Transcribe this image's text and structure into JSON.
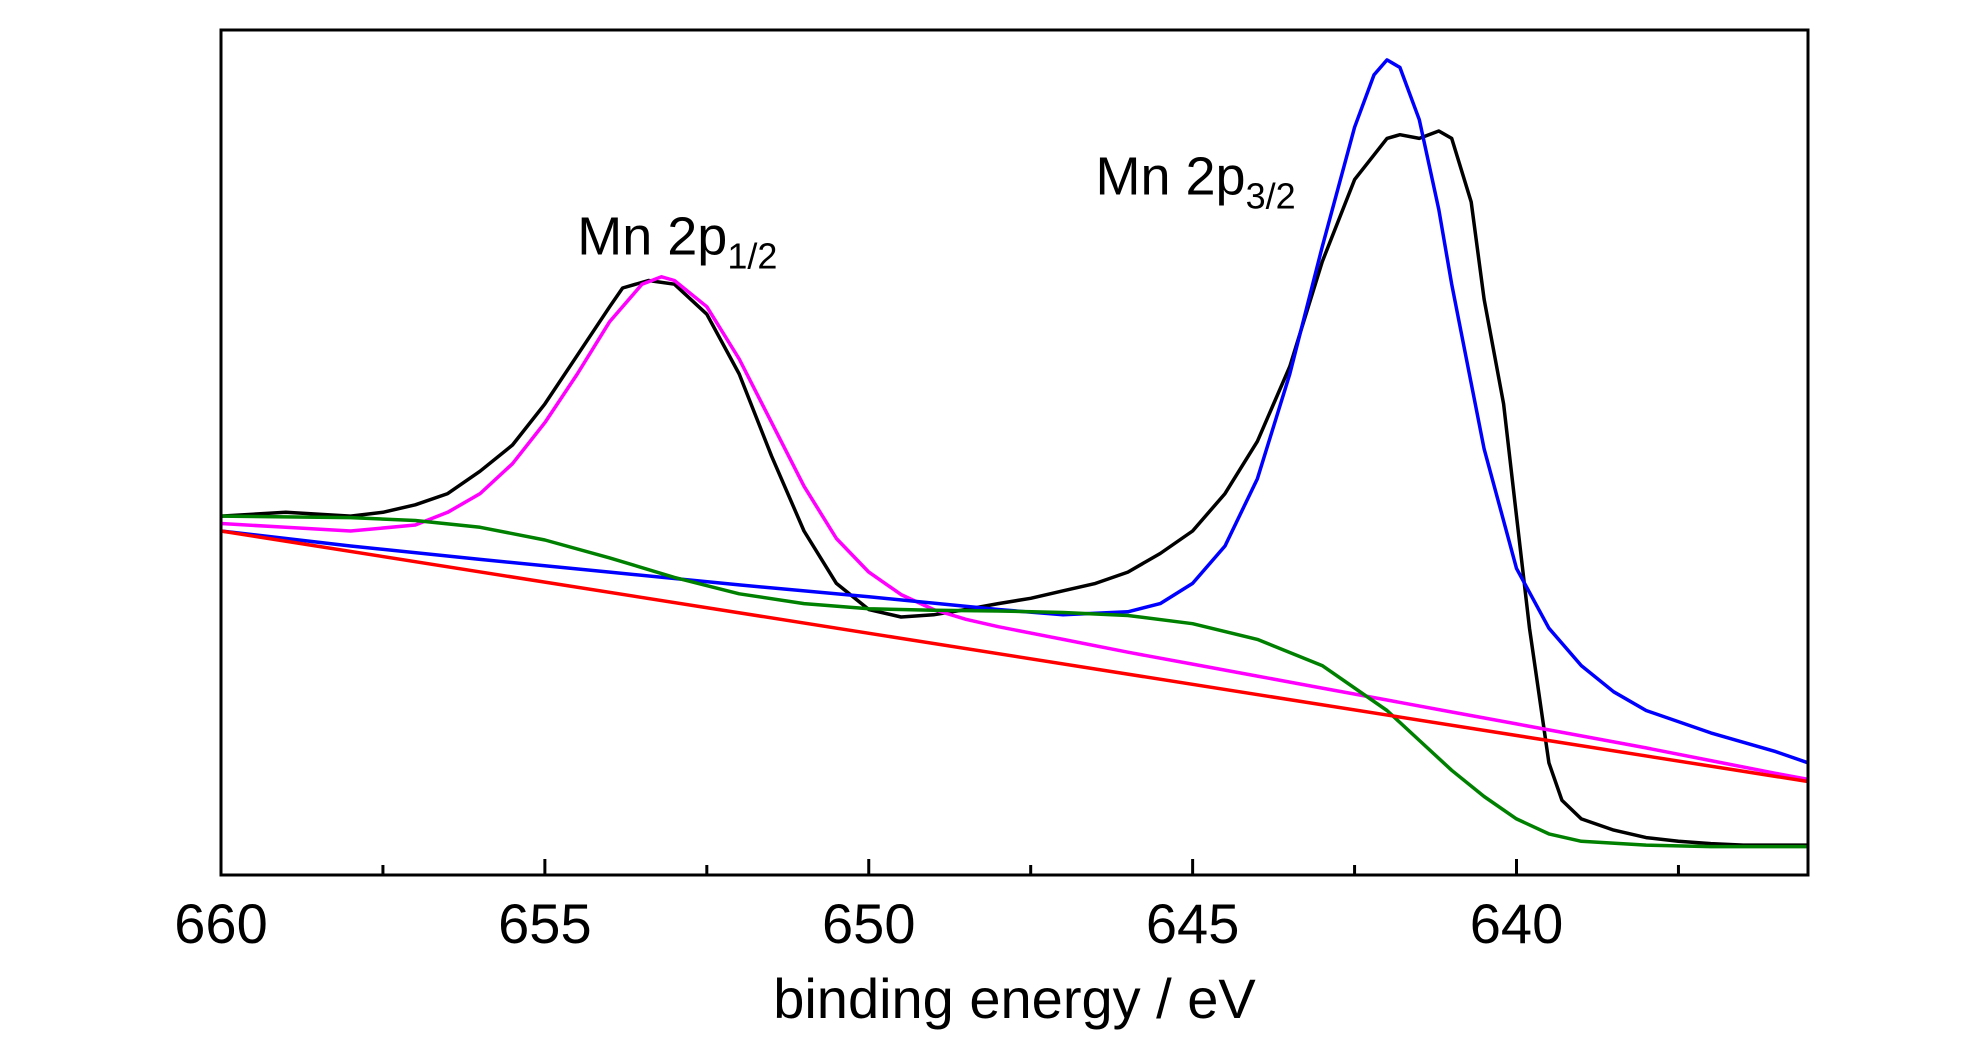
{
  "chart_data": {
    "type": "line",
    "title": "",
    "xlabel": "binding energy / eV",
    "ylabel": "",
    "xlim": [
      660,
      635.5
    ],
    "x_reversed": true,
    "ylim": [
      -0.03,
      1.1
    ],
    "y_ticks_shown": false,
    "grid": false,
    "legend": "none",
    "x_ticks": [
      660,
      655,
      650,
      645,
      640
    ],
    "x_tick_labels": [
      "660",
      "655",
      "650",
      "645",
      "640"
    ],
    "x_minor_ticks": [
      657.5,
      652.5,
      647.5,
      642.5,
      637.5
    ],
    "annotations": [
      {
        "base": "Mn 2p",
        "sub": "1/2",
        "x": 654.5,
        "y": 0.8
      },
      {
        "base": "Mn 2p",
        "sub": "3/2",
        "x": 646.5,
        "y": 0.88
      }
    ],
    "series": [
      {
        "color": "#000000",
        "x": [
          660,
          659,
          658,
          657.5,
          657,
          656.5,
          656,
          655.5,
          655,
          654.5,
          654,
          653.8,
          653.4,
          653,
          652.5,
          652,
          651.5,
          651,
          650.5,
          650,
          649.5,
          649,
          648.5,
          648,
          647.5,
          647,
          646.5,
          646,
          645.5,
          645,
          644.5,
          644,
          643.5,
          643,
          642.5,
          642,
          641.8,
          641.5,
          641.2,
          641,
          640.7,
          640.5,
          640.2,
          640,
          639.8,
          639.5,
          639.3,
          639,
          638.5,
          638,
          637.5,
          637,
          636.5,
          636,
          635.5
        ],
        "y": [
          0.45,
          0.455,
          0.45,
          0.455,
          0.465,
          0.48,
          0.51,
          0.545,
          0.6,
          0.665,
          0.73,
          0.755,
          0.765,
          0.76,
          0.72,
          0.64,
          0.53,
          0.43,
          0.36,
          0.325,
          0.315,
          0.318,
          0.325,
          0.333,
          0.34,
          0.35,
          0.36,
          0.375,
          0.4,
          0.43,
          0.48,
          0.55,
          0.65,
          0.79,
          0.9,
          0.955,
          0.96,
          0.955,
          0.965,
          0.955,
          0.87,
          0.74,
          0.6,
          0.45,
          0.3,
          0.12,
          0.07,
          0.045,
          0.03,
          0.02,
          0.015,
          0.012,
          0.01,
          0.01,
          0.01
        ]
      },
      {
        "color": "#ff00ff",
        "x": [
          660,
          659,
          658,
          657,
          656.5,
          656,
          655.5,
          655,
          654.5,
          654,
          653.5,
          653.2,
          653,
          652.5,
          652,
          651.5,
          651,
          650.5,
          650,
          649.5,
          649,
          648.5,
          648,
          647,
          646,
          645,
          644,
          643,
          642,
          641,
          640,
          639,
          638,
          637,
          636,
          635.5
        ],
        "y": [
          0.44,
          0.435,
          0.43,
          0.438,
          0.455,
          0.48,
          0.52,
          0.575,
          0.64,
          0.71,
          0.76,
          0.77,
          0.765,
          0.73,
          0.66,
          0.575,
          0.49,
          0.42,
          0.375,
          0.345,
          0.325,
          0.312,
          0.302,
          0.285,
          0.268,
          0.252,
          0.236,
          0.22,
          0.204,
          0.188,
          0.172,
          0.156,
          0.14,
          0.123,
          0.106,
          0.098
        ]
      },
      {
        "color": "#0000ff",
        "x": [
          660,
          658,
          656,
          654,
          652,
          650,
          648,
          647,
          646,
          645.5,
          645,
          644.5,
          644,
          643.5,
          643,
          642.5,
          642.2,
          642,
          641.8,
          641.5,
          641.2,
          641,
          640.5,
          640,
          639.5,
          639,
          638.5,
          638,
          637,
          636,
          635.5
        ],
        "y": [
          0.43,
          0.41,
          0.392,
          0.375,
          0.358,
          0.342,
          0.325,
          0.318,
          0.322,
          0.333,
          0.36,
          0.41,
          0.5,
          0.64,
          0.81,
          0.97,
          1.04,
          1.06,
          1.05,
          0.98,
          0.86,
          0.76,
          0.54,
          0.38,
          0.3,
          0.25,
          0.215,
          0.19,
          0.16,
          0.135,
          0.12
        ]
      },
      {
        "color": "#008000",
        "x": [
          660,
          658,
          657,
          656,
          655,
          654,
          653,
          652,
          651,
          650,
          649,
          648,
          647,
          646,
          645,
          644,
          643,
          642,
          641.5,
          641,
          640.5,
          640,
          639.5,
          639,
          638,
          637,
          636,
          635.5
        ],
        "y": [
          0.45,
          0.448,
          0.444,
          0.435,
          0.418,
          0.394,
          0.368,
          0.346,
          0.333,
          0.326,
          0.324,
          0.323,
          0.321,
          0.317,
          0.306,
          0.285,
          0.25,
          0.19,
          0.15,
          0.11,
          0.075,
          0.045,
          0.025,
          0.015,
          0.01,
          0.008,
          0.008,
          0.008
        ]
      },
      {
        "color": "#ff0000",
        "x": [
          660,
          635.5
        ],
        "y": [
          0.43,
          0.095
        ]
      }
    ]
  }
}
